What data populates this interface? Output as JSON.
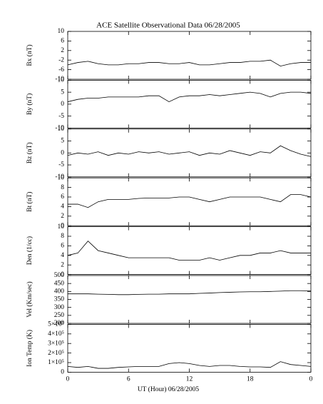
{
  "title": "ACE Satellite Observational Data   06/28/2005",
  "xlabel": "UT (Hour)   06/28/2005",
  "x": [
    0,
    1,
    2,
    3,
    4,
    5,
    6,
    7,
    8,
    9,
    10,
    11,
    12,
    13,
    14,
    15,
    16,
    17,
    18,
    19,
    20,
    21,
    22,
    23,
    24
  ],
  "xlim": [
    0,
    24
  ],
  "xticks": [
    0,
    6,
    12,
    18,
    {
      "value": 24,
      "label": "0"
    }
  ],
  "chart_data": [
    {
      "type": "line",
      "ylabel": "Bx (nT)",
      "color": "#000000",
      "ylim": [
        -10,
        10
      ],
      "yticks": [
        -10,
        -6,
        -2,
        2,
        6,
        10
      ],
      "values": [
        -4,
        -3,
        -2.5,
        -3.5,
        -4,
        -4,
        -3.5,
        -3.5,
        -3,
        -3,
        -3.5,
        -3.5,
        -3,
        -4,
        -4,
        -3.5,
        -3,
        -3,
        -2.5,
        -2.5,
        -2,
        -4.5,
        -3.5,
        -3,
        -3
      ]
    },
    {
      "type": "line",
      "ylabel": "By (nT)",
      "color": "#000000",
      "ylim": [
        -10,
        10
      ],
      "yticks": [
        -10,
        -5,
        0,
        5,
        10
      ],
      "values": [
        1,
        2,
        2.5,
        2.5,
        3,
        3,
        3,
        3,
        3.5,
        3.5,
        1,
        3,
        3.5,
        3.5,
        4,
        3.5,
        4,
        4.5,
        5,
        4.5,
        3,
        4.5,
        5,
        5,
        4.5
      ]
    },
    {
      "type": "line",
      "ylabel": "Bz (nT)",
      "color": "#000000",
      "ylim": [
        -10,
        10
      ],
      "yticks": [
        -10,
        -5,
        0,
        5,
        10
      ],
      "values": [
        -1,
        0,
        -0.5,
        0.5,
        -1,
        0,
        -0.5,
        0.5,
        0,
        0.5,
        -0.5,
        0,
        0.5,
        -1,
        0,
        -0.5,
        1,
        0,
        -1,
        0.5,
        0,
        3,
        1,
        -0.5,
        -1.5
      ]
    },
    {
      "type": "line",
      "ylabel": "Bt (nT)",
      "color": "#000000",
      "ylim": [
        0,
        10
      ],
      "yticks": [
        0,
        2,
        4,
        6,
        8,
        10
      ],
      "values": [
        4.5,
        4.5,
        3.8,
        5,
        5.5,
        5.5,
        5.5,
        5.7,
        5.8,
        5.8,
        5.8,
        6,
        6,
        5.5,
        5,
        5.5,
        6,
        6,
        6,
        6,
        5.5,
        5,
        6.5,
        6.5,
        6
      ]
    },
    {
      "type": "line",
      "ylabel": "Den (1/cc)",
      "color": "#000000",
      "ylim": [
        0,
        10
      ],
      "yticks": [
        0,
        2,
        4,
        6,
        8,
        10
      ],
      "values": [
        4,
        4.5,
        7,
        5,
        4.5,
        4,
        3.5,
        3.5,
        3.5,
        3.5,
        3.5,
        3,
        3,
        3,
        3.5,
        3,
        3.5,
        4,
        4,
        4.5,
        4.5,
        5,
        4.5,
        4.5,
        4.5
      ]
    },
    {
      "type": "line",
      "ylabel": "Vel (Km/sec)",
      "color": "#000000",
      "ylim": [
        200,
        500
      ],
      "yticks": [
        200,
        250,
        300,
        350,
        400,
        450,
        500
      ],
      "values": [
        385,
        385,
        385,
        383,
        382,
        380,
        380,
        382,
        383,
        383,
        385,
        385,
        385,
        388,
        390,
        393,
        395,
        397,
        398,
        398,
        400,
        402,
        405,
        405,
        403
      ]
    },
    {
      "type": "line",
      "ylabel": "Ion Temp (K)",
      "color": "#000000",
      "ylim": [
        0,
        500000
      ],
      "yticks": [
        0,
        {
          "value": 100000,
          "label": "1×10⁵"
        },
        {
          "value": 200000,
          "label": "2×10⁵"
        },
        {
          "value": 300000,
          "label": "3×10⁵"
        },
        {
          "value": 400000,
          "label": "4×10⁵"
        },
        {
          "value": 500000,
          "label": "5×10⁵"
        }
      ],
      "values": [
        60000,
        50000,
        60000,
        40000,
        40000,
        50000,
        55000,
        60000,
        60000,
        60000,
        90000,
        100000,
        90000,
        70000,
        60000,
        70000,
        70000,
        60000,
        55000,
        55000,
        50000,
        110000,
        80000,
        70000,
        60000
      ]
    }
  ]
}
